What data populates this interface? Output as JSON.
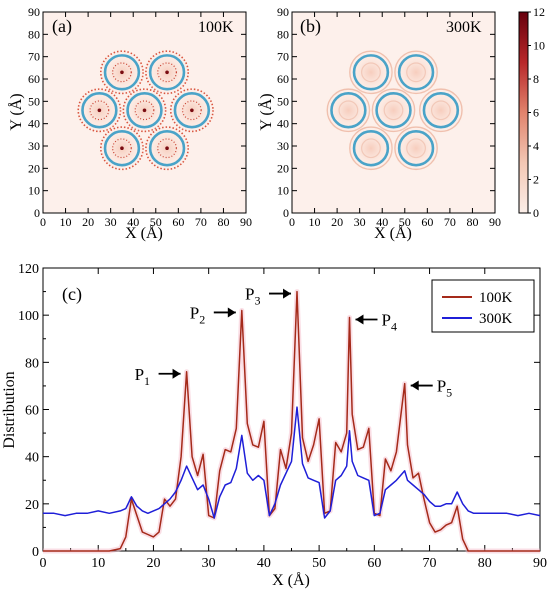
{
  "chart_data": [
    {
      "type": "heatmap",
      "panel_label": "(a)",
      "annotation": "100K",
      "xlabel": "X (Å)",
      "ylabel": "Y (Å)",
      "xlim": [
        0,
        90
      ],
      "ylim": [
        0,
        90
      ],
      "xticks": [
        0,
        10,
        20,
        30,
        40,
        50,
        60,
        70,
        80,
        90
      ],
      "yticks": [
        0,
        10,
        20,
        30,
        40,
        50,
        60,
        70,
        80,
        90
      ],
      "tube_centers": [
        [
          35,
          63
        ],
        [
          55,
          63
        ],
        [
          25,
          46
        ],
        [
          45,
          46
        ],
        [
          66,
          46
        ],
        [
          35,
          29
        ],
        [
          55,
          29
        ]
      ],
      "ring_radius_angstrom": 7.5,
      "peak_density": "high"
    },
    {
      "type": "heatmap",
      "panel_label": "(b)",
      "annotation": "300K",
      "xlabel": "X (Å)",
      "ylabel": "Y (Å)",
      "xlim": [
        0,
        90
      ],
      "ylim": [
        0,
        90
      ],
      "xticks": [
        0,
        10,
        20,
        30,
        40,
        50,
        60,
        70,
        80,
        90
      ],
      "yticks": [
        0,
        10,
        20,
        30,
        40,
        50,
        60,
        70,
        80,
        90
      ],
      "tube_centers": [
        [
          35,
          63
        ],
        [
          55,
          63
        ],
        [
          25,
          46
        ],
        [
          45,
          46
        ],
        [
          66,
          46
        ],
        [
          35,
          29
        ],
        [
          55,
          29
        ]
      ],
      "ring_radius_angstrom": 7.5,
      "peak_density": "low",
      "colorbar": {
        "range": [
          0,
          12
        ],
        "ticks": [
          0,
          2,
          4,
          6,
          8,
          10,
          12
        ],
        "colors": [
          "#fbeee8",
          "#f3c7b4",
          "#e1836c",
          "#b8282a",
          "#67000d"
        ]
      }
    },
    {
      "type": "line",
      "panel_label": "(c)",
      "xlabel": "X (Å)",
      "ylabel": "Distribution",
      "xlim": [
        0,
        90
      ],
      "ylim": [
        0,
        120
      ],
      "xticks": [
        0,
        10,
        20,
        30,
        40,
        50,
        60,
        70,
        80,
        90
      ],
      "yticks": [
        0,
        20,
        40,
        60,
        80,
        100,
        120
      ],
      "legend_position": "top-right",
      "series": [
        {
          "name": "100K",
          "color": "#a52a1a",
          "points": [
            [
              0,
              0
            ],
            [
              12,
              0
            ],
            [
              14,
              1
            ],
            [
              15,
              6
            ],
            [
              16,
              22
            ],
            [
              17,
              15
            ],
            [
              18,
              8
            ],
            [
              19,
              7
            ],
            [
              20,
              6
            ],
            [
              21,
              8
            ],
            [
              22,
              22
            ],
            [
              23,
              19
            ],
            [
              24,
              22
            ],
            [
              25,
              40
            ],
            [
              26,
              76
            ],
            [
              27,
              40
            ],
            [
              28,
              32
            ],
            [
              29,
              41
            ],
            [
              30,
              15
            ],
            [
              31,
              14
            ],
            [
              32,
              34
            ],
            [
              33,
              43
            ],
            [
              34,
              42
            ],
            [
              35,
              52
            ],
            [
              36,
              102
            ],
            [
              37,
              54
            ],
            [
              38,
              45
            ],
            [
              39,
              44
            ],
            [
              40,
              55
            ],
            [
              41,
              15
            ],
            [
              42,
              18
            ],
            [
              43,
              43
            ],
            [
              44,
              35
            ],
            [
              45,
              50
            ],
            [
              46,
              110
            ],
            [
              47,
              48
            ],
            [
              48,
              38
            ],
            [
              49,
              45
            ],
            [
              50,
              56
            ],
            [
              51,
              16
            ],
            [
              52,
              17
            ],
            [
              53,
              46
            ],
            [
              54,
              42
            ],
            [
              55,
              50
            ],
            [
              55.5,
              99
            ],
            [
              56,
              58
            ],
            [
              57,
              43
            ],
            [
              58,
              44
            ],
            [
              59,
              52
            ],
            [
              60,
              16
            ],
            [
              61,
              15
            ],
            [
              62,
              39
            ],
            [
              63,
              34
            ],
            [
              64,
              42
            ],
            [
              65.5,
              71
            ],
            [
              66,
              45
            ],
            [
              67,
              31
            ],
            [
              68,
              33
            ],
            [
              69,
              22
            ],
            [
              70,
              12
            ],
            [
              71,
              8
            ],
            [
              72,
              9
            ],
            [
              73,
              11
            ],
            [
              74,
              12
            ],
            [
              75,
              19
            ],
            [
              76,
              5
            ],
            [
              77,
              0
            ],
            [
              90,
              0
            ]
          ]
        },
        {
          "name": "300K",
          "color": "#1f1fd8",
          "points": [
            [
              0,
              16
            ],
            [
              2,
              16
            ],
            [
              4,
              15
            ],
            [
              6,
              16
            ],
            [
              8,
              16
            ],
            [
              10,
              17
            ],
            [
              12,
              16
            ],
            [
              14,
              17
            ],
            [
              15,
              18
            ],
            [
              16,
              23
            ],
            [
              17,
              19
            ],
            [
              18,
              17
            ],
            [
              19,
              16
            ],
            [
              20,
              17
            ],
            [
              21,
              18
            ],
            [
              22,
              20
            ],
            [
              23,
              22
            ],
            [
              24,
              25
            ],
            [
              25,
              30
            ],
            [
              26,
              36
            ],
            [
              27,
              31
            ],
            [
              28,
              26
            ],
            [
              29,
              28
            ],
            [
              30,
              22
            ],
            [
              31,
              14
            ],
            [
              32,
              23
            ],
            [
              33,
              28
            ],
            [
              34,
              29
            ],
            [
              35,
              35
            ],
            [
              36,
              49
            ],
            [
              37,
              33
            ],
            [
              38,
              30
            ],
            [
              39,
              32
            ],
            [
              40,
              30
            ],
            [
              41,
              15
            ],
            [
              42,
              20
            ],
            [
              43,
              28
            ],
            [
              44,
              33
            ],
            [
              45,
              38
            ],
            [
              46,
              61
            ],
            [
              47,
              37
            ],
            [
              48,
              31
            ],
            [
              49,
              30
            ],
            [
              50,
              29
            ],
            [
              51,
              14
            ],
            [
              52,
              17
            ],
            [
              53,
              30
            ],
            [
              54,
              32
            ],
            [
              55,
              36
            ],
            [
              55.5,
              51
            ],
            [
              56,
              38
            ],
            [
              57,
              32
            ],
            [
              58,
              31
            ],
            [
              59,
              30
            ],
            [
              60,
              15
            ],
            [
              61,
              16
            ],
            [
              62,
              26
            ],
            [
              63,
              28
            ],
            [
              64,
              30
            ],
            [
              65.5,
              34
            ],
            [
              66,
              30
            ],
            [
              67,
              28
            ],
            [
              68,
              26
            ],
            [
              69,
              24
            ],
            [
              70,
              21
            ],
            [
              71,
              19
            ],
            [
              72,
              19
            ],
            [
              73,
              20
            ],
            [
              74,
              20
            ],
            [
              75,
              25
            ],
            [
              76,
              20
            ],
            [
              77,
              17
            ],
            [
              78,
              16
            ],
            [
              80,
              16
            ],
            [
              82,
              16
            ],
            [
              84,
              16
            ],
            [
              86,
              15
            ],
            [
              88,
              16
            ],
            [
              90,
              15
            ]
          ]
        }
      ],
      "annotations": [
        {
          "label": "P",
          "sub": "1",
          "x": 26,
          "y": 76,
          "arrow": "right"
        },
        {
          "label": "P",
          "sub": "2",
          "x": 36,
          "y": 102,
          "arrow": "right"
        },
        {
          "label": "P",
          "sub": "3",
          "x": 46,
          "y": 110,
          "arrow": "right"
        },
        {
          "label": "P",
          "sub": "4",
          "x": 55.5,
          "y": 99,
          "arrow": "left"
        },
        {
          "label": "P",
          "sub": "5",
          "x": 65.5,
          "y": 71,
          "arrow": "left"
        }
      ]
    }
  ]
}
